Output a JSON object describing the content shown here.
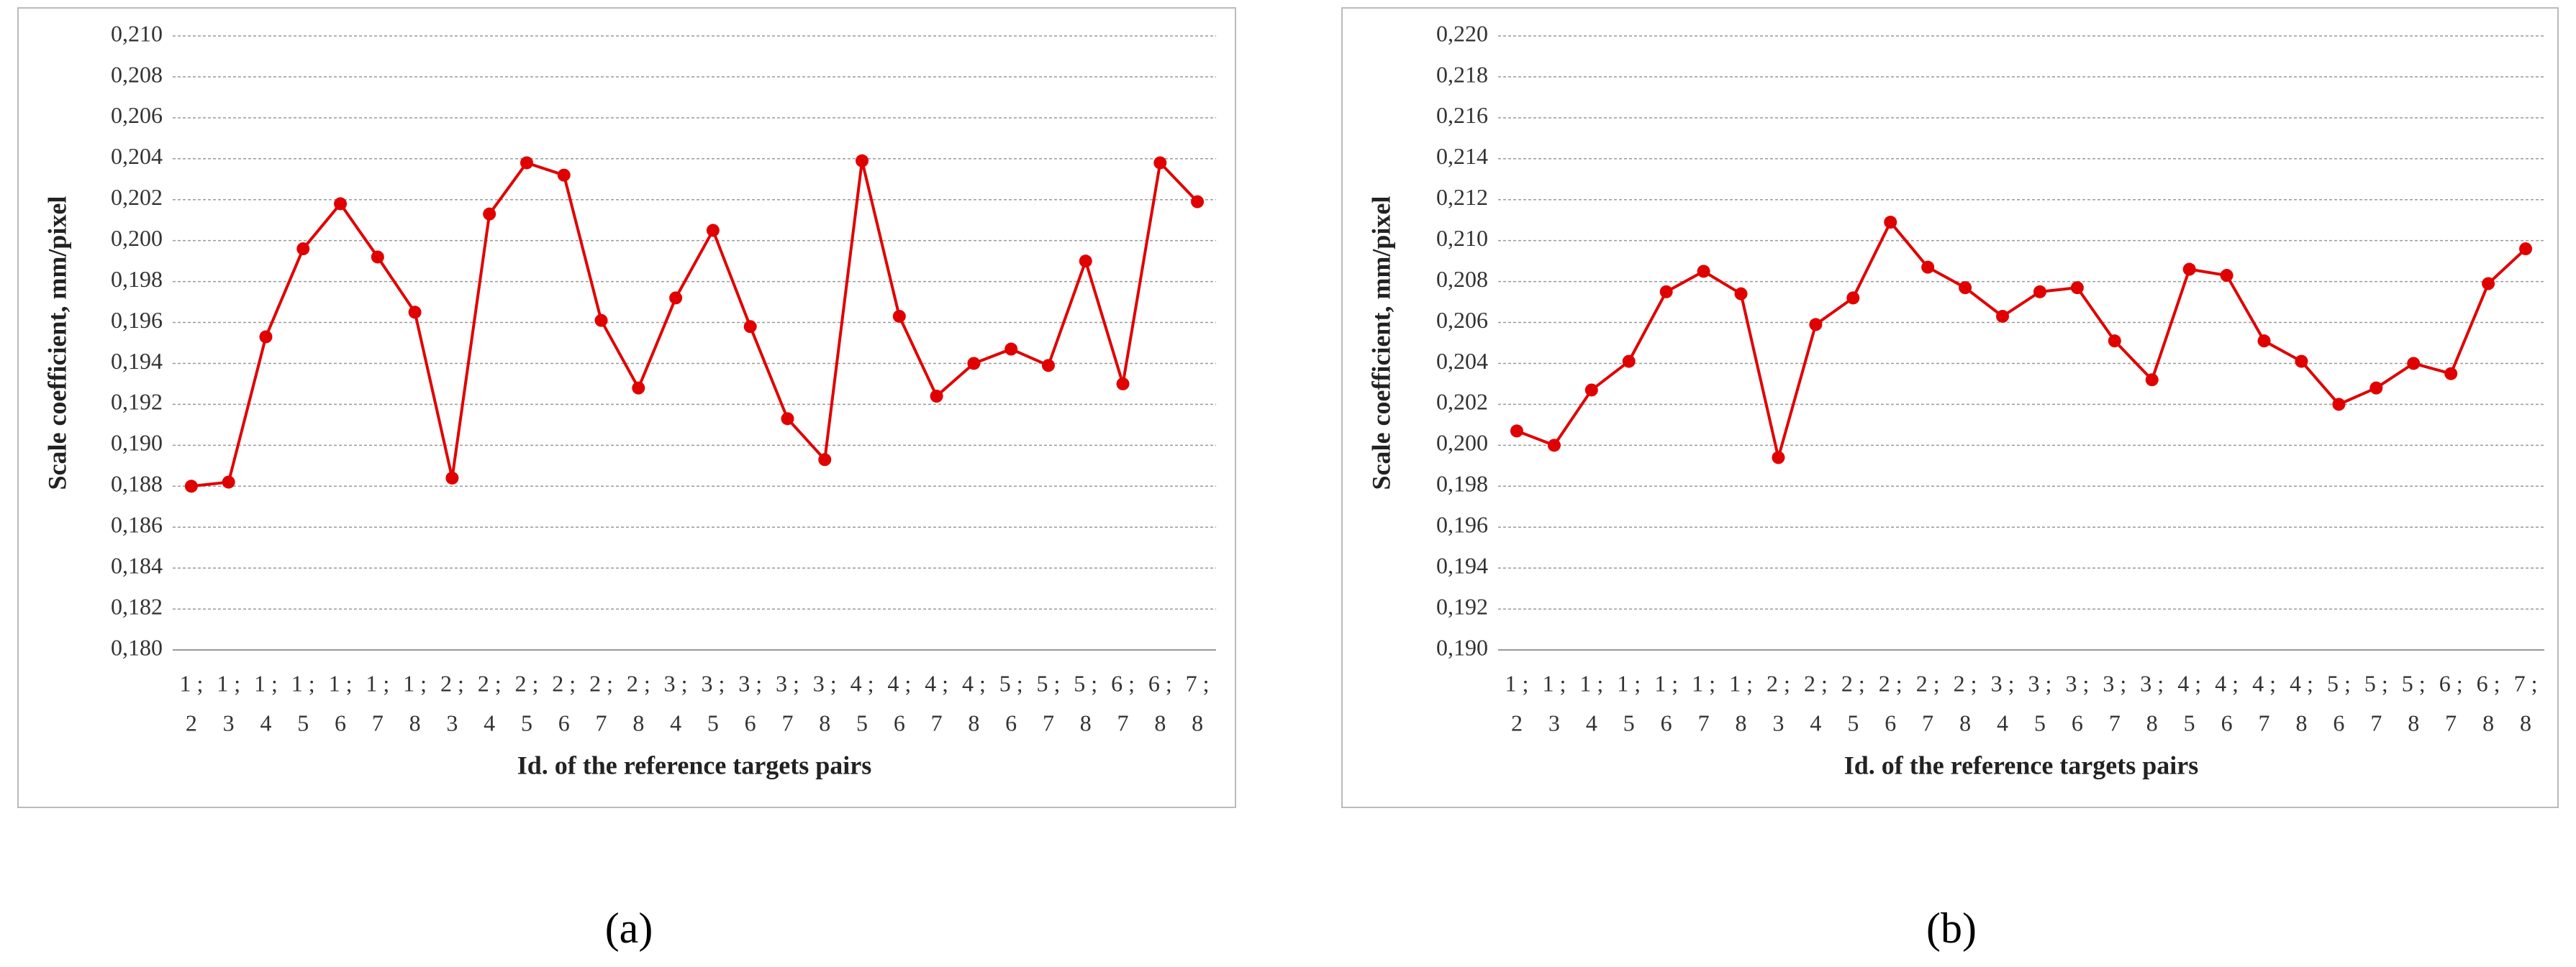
{
  "chart_data": [
    {
      "type": "line",
      "label": "(a)",
      "x_label": "Id. of the reference targets pairs",
      "y_label": "Scale coefficient, mm/pixel",
      "categories": [
        [
          "1 ;",
          "2"
        ],
        [
          "1 ;",
          "3"
        ],
        [
          "1 ;",
          "4"
        ],
        [
          "1 ;",
          "5"
        ],
        [
          "1 ;",
          "6"
        ],
        [
          "1 ;",
          "7"
        ],
        [
          "1 ;",
          "8"
        ],
        [
          "2 ;",
          "3"
        ],
        [
          "2 ;",
          "4"
        ],
        [
          "2 ;",
          "5"
        ],
        [
          "2 ;",
          "6"
        ],
        [
          "2 ;",
          "7"
        ],
        [
          "2 ;",
          "8"
        ],
        [
          "3 ;",
          "4"
        ],
        [
          "3 ;",
          "5"
        ],
        [
          "3 ;",
          "6"
        ],
        [
          "3 ;",
          "7"
        ],
        [
          "3 ;",
          "8"
        ],
        [
          "4 ;",
          "5"
        ],
        [
          "4 ;",
          "6"
        ],
        [
          "4 ;",
          "7"
        ],
        [
          "4 ;",
          "8"
        ],
        [
          "5 ;",
          "6"
        ],
        [
          "5 ;",
          "7"
        ],
        [
          "5 ;",
          "8"
        ],
        [
          "6 ;",
          "7"
        ],
        [
          "6 ;",
          "8"
        ],
        [
          "7 ;",
          "8"
        ]
      ],
      "values": [
        0.188,
        0.1882,
        0.1953,
        0.1996,
        0.2018,
        0.1992,
        0.1965,
        0.1884,
        0.2013,
        0.2038,
        0.2032,
        0.1961,
        0.1928,
        0.1972,
        0.2005,
        0.1958,
        0.1913,
        0.1893,
        0.2039,
        0.1963,
        0.1924,
        0.194,
        0.1947,
        0.1939,
        0.199,
        0.193,
        0.2038,
        0.2019
      ],
      "color": "#e00000",
      "grid": true,
      "ylim": [
        0.18,
        0.21
      ],
      "yticks": [
        {
          "value": 0.18,
          "label": "0,180"
        },
        {
          "value": 0.182,
          "label": "0,182"
        },
        {
          "value": 0.184,
          "label": "0,184"
        },
        {
          "value": 0.186,
          "label": "0,186"
        },
        {
          "value": 0.188,
          "label": "0,188"
        },
        {
          "value": 0.19,
          "label": "0,190"
        },
        {
          "value": 0.192,
          "label": "0,192"
        },
        {
          "value": 0.194,
          "label": "0,194"
        },
        {
          "value": 0.196,
          "label": "0,196"
        },
        {
          "value": 0.198,
          "label": "0,198"
        },
        {
          "value": 0.2,
          "label": "0,200"
        },
        {
          "value": 0.202,
          "label": "0,202"
        },
        {
          "value": 0.204,
          "label": "0,204"
        },
        {
          "value": 0.206,
          "label": "0,206"
        },
        {
          "value": 0.208,
          "label": "0,208"
        },
        {
          "value": 0.21,
          "label": "0,210"
        }
      ]
    },
    {
      "type": "line",
      "label": "(b)",
      "x_label": "Id. of the reference targets pairs",
      "y_label": "Scale coefficient, mm/pixel",
      "categories": [
        [
          "1 ;",
          "2"
        ],
        [
          "1 ;",
          "3"
        ],
        [
          "1 ;",
          "4"
        ],
        [
          "1 ;",
          "5"
        ],
        [
          "1 ;",
          "6"
        ],
        [
          "1 ;",
          "7"
        ],
        [
          "1 ;",
          "8"
        ],
        [
          "2 ;",
          "3"
        ],
        [
          "2 ;",
          "4"
        ],
        [
          "2 ;",
          "5"
        ],
        [
          "2 ;",
          "6"
        ],
        [
          "2 ;",
          "7"
        ],
        [
          "2 ;",
          "8"
        ],
        [
          "3 ;",
          "4"
        ],
        [
          "3 ;",
          "5"
        ],
        [
          "3 ;",
          "6"
        ],
        [
          "3 ;",
          "7"
        ],
        [
          "3 ;",
          "8"
        ],
        [
          "4 ;",
          "5"
        ],
        [
          "4 ;",
          "6"
        ],
        [
          "4 ;",
          "7"
        ],
        [
          "4 ;",
          "8"
        ],
        [
          "5 ;",
          "6"
        ],
        [
          "5 ;",
          "7"
        ],
        [
          "5 ;",
          "8"
        ],
        [
          "6 ;",
          "7"
        ],
        [
          "6 ;",
          "8"
        ],
        [
          "7 ;",
          "8"
        ]
      ],
      "values": [
        0.2007,
        0.2,
        0.2027,
        0.2041,
        0.2075,
        0.2085,
        0.2074,
        0.1994,
        0.2059,
        0.2072,
        0.2109,
        0.2087,
        0.2077,
        0.2063,
        0.2075,
        0.2077,
        0.2051,
        0.2032,
        0.2086,
        0.2083,
        0.2051,
        0.2041,
        0.202,
        0.2028,
        0.204,
        0.2035,
        0.2079,
        0.2096
      ],
      "color": "#e00000",
      "grid": true,
      "ylim": [
        0.19,
        0.22
      ],
      "yticks": [
        {
          "value": 0.19,
          "label": "0,190"
        },
        {
          "value": 0.192,
          "label": "0,192"
        },
        {
          "value": 0.194,
          "label": "0,194"
        },
        {
          "value": 0.196,
          "label": "0,196"
        },
        {
          "value": 0.198,
          "label": "0,198"
        },
        {
          "value": 0.2,
          "label": "0,200"
        },
        {
          "value": 0.202,
          "label": "0,202"
        },
        {
          "value": 0.204,
          "label": "0,204"
        },
        {
          "value": 0.206,
          "label": "0,206"
        },
        {
          "value": 0.208,
          "label": "0,208"
        },
        {
          "value": 0.21,
          "label": "0,210"
        },
        {
          "value": 0.212,
          "label": "0,212"
        },
        {
          "value": 0.214,
          "label": "0,214"
        },
        {
          "value": 0.216,
          "label": "0,216"
        },
        {
          "value": 0.218,
          "label": "0,218"
        },
        {
          "value": 0.22,
          "label": "0,220"
        }
      ]
    }
  ]
}
